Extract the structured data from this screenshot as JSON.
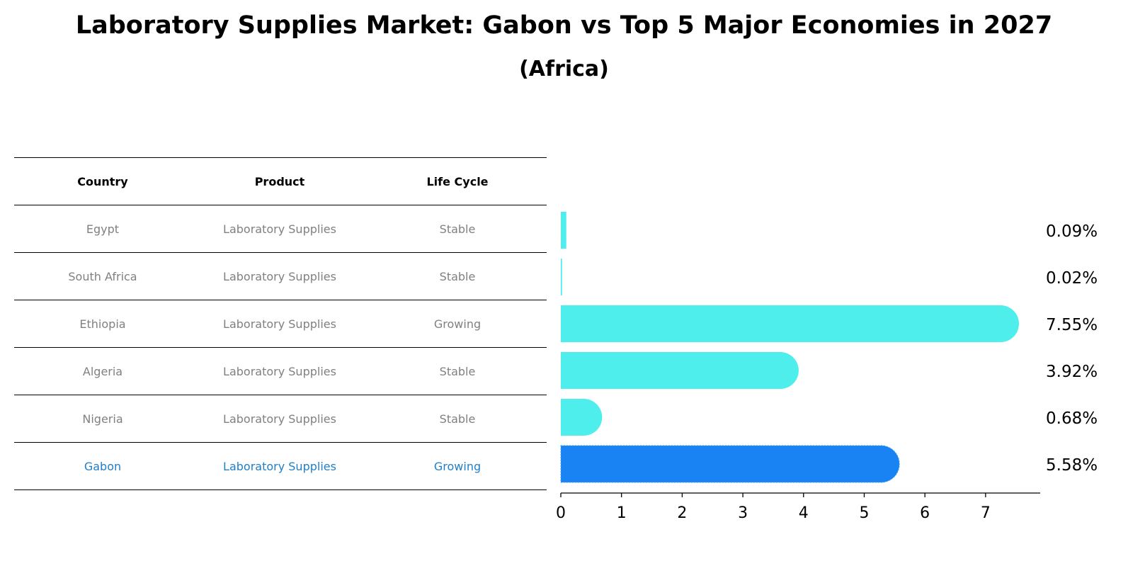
{
  "title": "Laboratory Supplies Market: Gabon vs Top 5 Major Economies in 2027",
  "subtitle": "(Africa)",
  "table": {
    "headers": [
      "Country",
      "Product",
      "Life Cycle"
    ],
    "rows": [
      {
        "country": "Egypt",
        "product": "Laboratory Supplies",
        "life_cycle": "Stable"
      },
      {
        "country": "South Africa",
        "product": "Laboratory Supplies",
        "life_cycle": "Stable"
      },
      {
        "country": "Ethiopia",
        "product": "Laboratory Supplies",
        "life_cycle": "Growing"
      },
      {
        "country": "Algeria",
        "product": "Laboratory Supplies",
        "life_cycle": "Stable"
      },
      {
        "country": "Nigeria",
        "product": "Laboratory Supplies",
        "life_cycle": "Stable"
      },
      {
        "country": "Gabon",
        "product": "Laboratory Supplies",
        "life_cycle": "Growing"
      }
    ],
    "highlight_color": "#1f7fc8",
    "text_color": "#808080"
  },
  "chart_data": {
    "type": "bar",
    "orientation": "horizontal",
    "categories": [
      "Egypt",
      "South Africa",
      "Ethiopia",
      "Algeria",
      "Nigeria",
      "Gabon"
    ],
    "values": [
      0.09,
      0.02,
      7.55,
      3.92,
      0.68,
      5.58
    ],
    "value_labels": [
      "0.09%",
      "0.02%",
      "7.55%",
      "3.92%",
      "0.68%",
      "5.58%"
    ],
    "highlight": "Gabon",
    "colors": {
      "default": "#4eeeec",
      "highlight": "#1a83f3"
    },
    "xlim": [
      0,
      7.9
    ],
    "xticks": [
      0,
      1,
      2,
      3,
      4,
      5,
      6,
      7
    ],
    "xlabel": "",
    "ylabel": ""
  }
}
